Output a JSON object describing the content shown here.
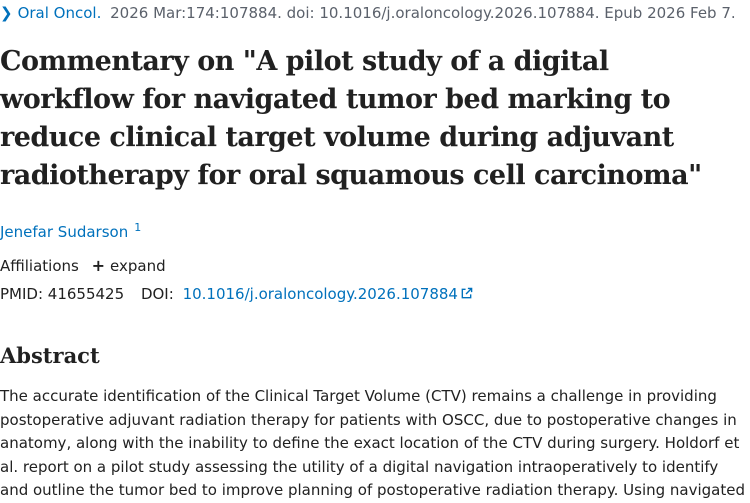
{
  "citation": {
    "journal": "Oral Oncol.",
    "details": "2026 Mar:174:107884. doi: 10.1016/j.oraloncology.2026.107884. Epub 2026 Feb 7."
  },
  "article": {
    "title": "Commentary on \"A pilot study of a digital workflow for navigated tumor bed marking to reduce clinical target volume during adjuvant radiotherapy for oral squamous cell carcinoma\"",
    "author": "Jenefar Sudarson",
    "author_sup": "1"
  },
  "affiliations": {
    "label": "Affiliations",
    "expand_label": "expand"
  },
  "identifiers": {
    "pmid_label": "PMID:",
    "pmid": "41655425",
    "doi_label": "DOI:",
    "doi": "10.1016/j.oraloncology.2026.107884"
  },
  "abstract": {
    "heading": "Abstract",
    "text": "The accurate identification of the Clinical Target Volume (CTV) remains a challenge in providing postoperative adjuvant radiation therapy for patients with OSCC, due to postoperative changes in anatomy, along with the inability to define the exact location of the CTV during surgery. Holdorf et al. report on a pilot study assessing the utility of a digital navigation intraoperatively to identify and outline the tumor bed to improve planning of postoperative radiation therapy. Using navigated"
  },
  "colors": {
    "link": "#0071bc",
    "text": "#212121",
    "muted": "#5b616b"
  },
  "icons": {
    "citation_toggle": "chevron-right-icon",
    "expand": "plus-icon",
    "external_link": "external-link-icon"
  }
}
